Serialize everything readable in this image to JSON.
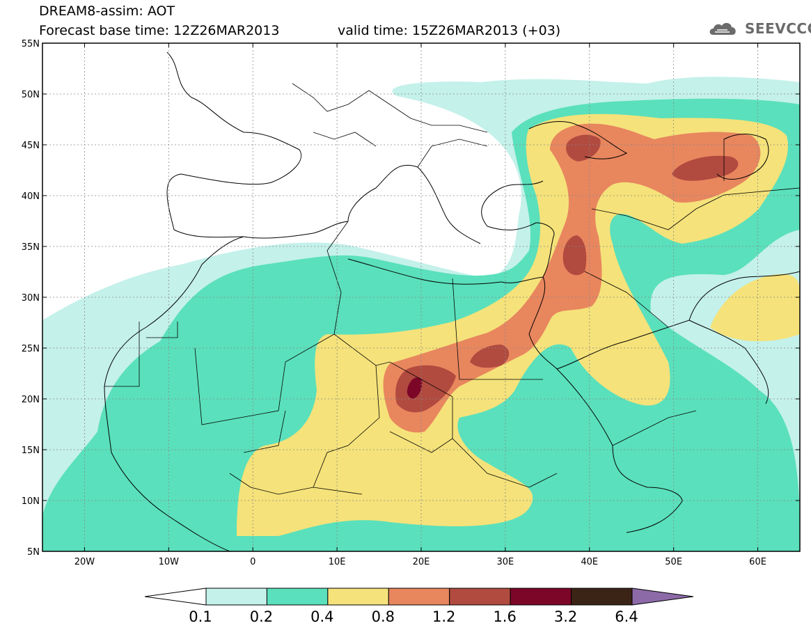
{
  "header": {
    "line1": "DREAM8-assim: AOT",
    "line2": "Forecast base time: 12Z26MAR2013",
    "valid": "valid time: 15Z26MAR2013 (+03)"
  },
  "logo": {
    "text": "SEEVCCC",
    "icon": "cloud-icon"
  },
  "map": {
    "lon_range": [
      -25,
      65
    ],
    "lat_range": [
      5,
      55
    ],
    "lon_ticks": [
      {
        "v": -20,
        "label": "20W"
      },
      {
        "v": -10,
        "label": "10W"
      },
      {
        "v": 0,
        "label": "0"
      },
      {
        "v": 10,
        "label": "10E"
      },
      {
        "v": 20,
        "label": "20E"
      },
      {
        "v": 30,
        "label": "30E"
      },
      {
        "v": 40,
        "label": "40E"
      },
      {
        "v": 50,
        "label": "50E"
      },
      {
        "v": 60,
        "label": "60E"
      }
    ],
    "lat_ticks": [
      {
        "v": 5,
        "label": "5N"
      },
      {
        "v": 10,
        "label": "10N"
      },
      {
        "v": 15,
        "label": "15N"
      },
      {
        "v": 20,
        "label": "20N"
      },
      {
        "v": 25,
        "label": "25N"
      },
      {
        "v": 30,
        "label": "30N"
      },
      {
        "v": 35,
        "label": "35N"
      },
      {
        "v": 40,
        "label": "40N"
      },
      {
        "v": 45,
        "label": "45N"
      },
      {
        "v": 50,
        "label": "50N"
      },
      {
        "v": 55,
        "label": "55N"
      }
    ],
    "grid": true
  },
  "colorbar": {
    "under_color": "#ffffff",
    "over_color": "#8c6aa8",
    "colors": [
      "#c4f1ea",
      "#5ae0bc",
      "#f5e27a",
      "#e8865e",
      "#b14a3f",
      "#7c0628",
      "#3b2416"
    ],
    "labels": [
      "0.1",
      "0.2",
      "0.4",
      "0.8",
      "1.2",
      "1.6",
      "3.2",
      "6.4"
    ]
  }
}
